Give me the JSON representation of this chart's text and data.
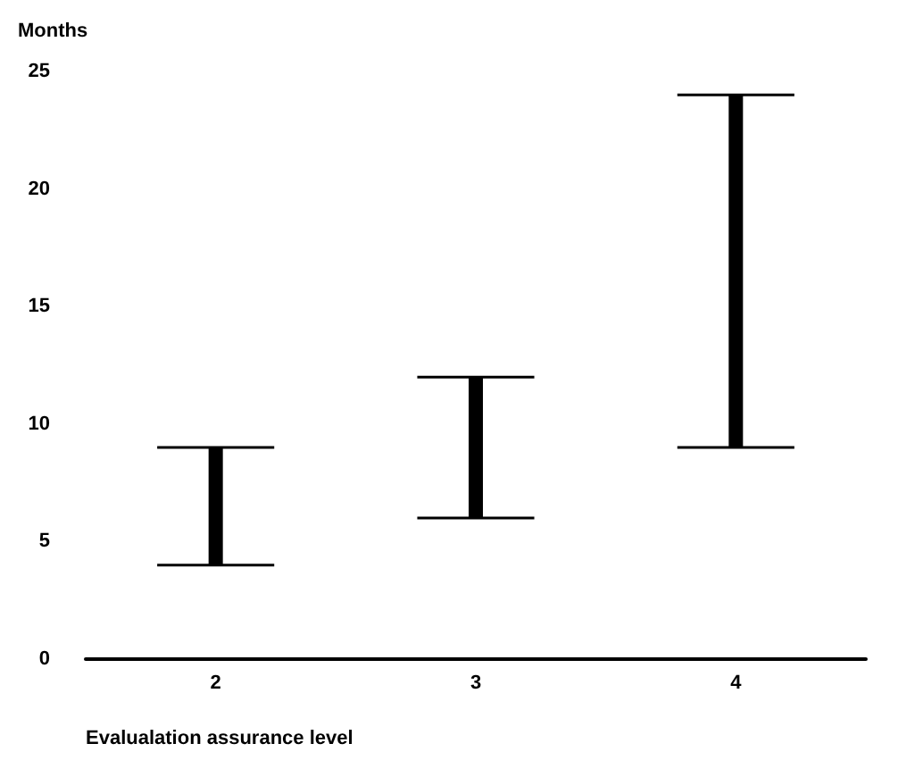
{
  "chart_data": {
    "type": "bar",
    "ylabel": "Months",
    "xlabel": "Evalualation assurance level",
    "categories": [
      "2",
      "3",
      "4"
    ],
    "base": [
      4,
      6,
      9
    ],
    "values": [
      5,
      6,
      15
    ],
    "color": "#000000",
    "ylim": [
      0,
      25
    ],
    "yticks": [
      0,
      5,
      10,
      15,
      20,
      25
    ],
    "grid": false
  }
}
